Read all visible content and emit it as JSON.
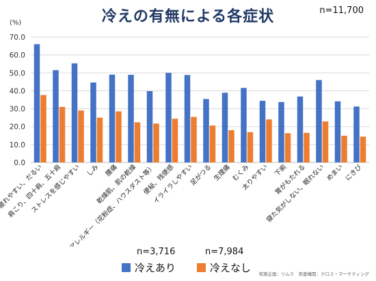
{
  "title": "冷えの有無による各症状",
  "n_total": "n=11,700",
  "credit": "実施企画：ツムラ　実査機関：クロス・マーケティング",
  "legend": [
    {
      "n": "n=3,716",
      "label": "冷えあり",
      "color": "#4472c4"
    },
    {
      "n": "n=7,984",
      "label": "冷えなし",
      "color": "#ed7d31"
    }
  ],
  "chart_data": {
    "type": "bar",
    "ylabel": "(%)",
    "ylim": [
      0,
      70
    ],
    "yticks": [
      "0.0",
      "10.0",
      "20.0",
      "30.0",
      "40.0",
      "50.0",
      "60.0",
      "70.0"
    ],
    "grid": true,
    "legend_position": "bottom",
    "categories": [
      "疲れやすい、だるい",
      "肩こり、四十肩、五十肩",
      "ストレスを感じやすい",
      "しみ",
      "腰痛",
      "乾燥肌、肌の乾燥",
      "アレルギー（花粉症、ハウスダスト等）",
      "便秘、残便感",
      "イライラしやすい",
      "足がつる",
      "生理痛",
      "むくみ",
      "太りやすい",
      "下痢",
      "胃がもたれる",
      "寝た気がしない、眠れない",
      "めまい",
      "にきび"
    ],
    "series": [
      {
        "name": "冷えあり",
        "color": "#4472c4",
        "values": [
          66.0,
          51.5,
          55.3,
          44.6,
          49.0,
          48.9,
          39.8,
          50.0,
          48.8,
          35.4,
          38.9,
          41.6,
          34.4,
          33.7,
          36.8,
          46.0,
          34.1,
          31.2
        ]
      },
      {
        "name": "冷えなし",
        "color": "#ed7d31",
        "values": [
          37.6,
          31.0,
          29.0,
          25.0,
          28.5,
          22.4,
          21.7,
          24.4,
          25.4,
          20.6,
          18.0,
          16.9,
          24.0,
          16.3,
          16.5,
          22.9,
          14.9,
          14.4
        ]
      }
    ]
  }
}
